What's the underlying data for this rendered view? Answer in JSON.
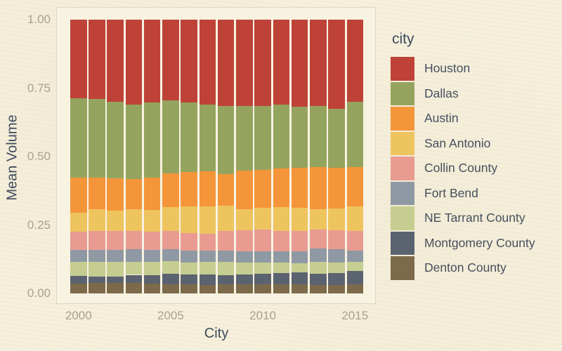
{
  "figure": {
    "background_color": "#f5efdb",
    "panel_background": "#f8f2e1",
    "panel_border_color": "#ded6bf",
    "tick_label_color": "#a9a190",
    "axis_title_color": "#3e4a5c",
    "legend_label_color": "#46505e"
  },
  "axes": {
    "x_title": "City",
    "y_title": "Mean Volume",
    "y_ticks": [
      {
        "label": "1.00",
        "value": 1.0
      },
      {
        "label": "0.75",
        "value": 0.75
      },
      {
        "label": "0.50",
        "value": 0.5
      },
      {
        "label": "0.25",
        "value": 0.25
      },
      {
        "label": "0.00",
        "value": 0.0
      }
    ],
    "x_ticks": [
      {
        "label": "2000",
        "index": 0
      },
      {
        "label": "2005",
        "index": 5
      },
      {
        "label": "2010",
        "index": 10
      },
      {
        "label": "2015",
        "index": 15
      }
    ]
  },
  "legend": {
    "title": "city",
    "position": "right"
  },
  "chart_data": {
    "type": "bar",
    "stacked": true,
    "normalized": true,
    "orientation": "vertical",
    "title": "",
    "xlabel": "City",
    "ylabel": "Mean Volume",
    "ylim": [
      0,
      1
    ],
    "grid": false,
    "legend_position": "right",
    "stack_note": "series listed in legend order top-to-bottom; bars stack with first series on top",
    "categories": [
      "2000",
      "2001",
      "2002",
      "2003",
      "2004",
      "2005",
      "2006",
      "2007",
      "2008",
      "2009",
      "2010",
      "2011",
      "2012",
      "2013",
      "2014",
      "2015"
    ],
    "series": [
      {
        "name": "Houston",
        "color": "#bf4238",
        "values": [
          0.287,
          0.29,
          0.3,
          0.309,
          0.302,
          0.294,
          0.302,
          0.31,
          0.315,
          0.315,
          0.315,
          0.31,
          0.317,
          0.315,
          0.326,
          0.3
        ]
      },
      {
        "name": "Dallas",
        "color": "#94a45e",
        "values": [
          0.291,
          0.288,
          0.28,
          0.273,
          0.274,
          0.267,
          0.254,
          0.245,
          0.248,
          0.237,
          0.233,
          0.234,
          0.224,
          0.224,
          0.215,
          0.238
        ]
      },
      {
        "name": "Austin",
        "color": "#f4953a",
        "values": [
          0.126,
          0.115,
          0.117,
          0.109,
          0.12,
          0.124,
          0.126,
          0.127,
          0.117,
          0.139,
          0.139,
          0.141,
          0.146,
          0.154,
          0.148,
          0.144
        ]
      },
      {
        "name": "San Antonio",
        "color": "#eec45f",
        "values": [
          0.07,
          0.08,
          0.076,
          0.082,
          0.078,
          0.088,
          0.097,
          0.099,
          0.093,
          0.079,
          0.08,
          0.088,
          0.086,
          0.073,
          0.081,
          0.091
        ]
      },
      {
        "name": "Collin County",
        "color": "#e99b92",
        "values": [
          0.067,
          0.068,
          0.068,
          0.065,
          0.067,
          0.065,
          0.065,
          0.062,
          0.07,
          0.077,
          0.08,
          0.074,
          0.074,
          0.07,
          0.068,
          0.07
        ]
      },
      {
        "name": "Fort Bend",
        "color": "#8f99a4",
        "values": [
          0.043,
          0.044,
          0.044,
          0.046,
          0.044,
          0.043,
          0.043,
          0.042,
          0.042,
          0.04,
          0.04,
          0.041,
          0.043,
          0.049,
          0.049,
          0.041
        ]
      },
      {
        "name": "NE Tarrant County",
        "color": "#c5cd90",
        "values": [
          0.052,
          0.054,
          0.054,
          0.048,
          0.048,
          0.046,
          0.043,
          0.045,
          0.048,
          0.043,
          0.04,
          0.037,
          0.033,
          0.042,
          0.038,
          0.035
        ]
      },
      {
        "name": "Montgomery County",
        "color": "#5b6370",
        "values": [
          0.028,
          0.024,
          0.024,
          0.03,
          0.031,
          0.039,
          0.037,
          0.04,
          0.033,
          0.036,
          0.04,
          0.042,
          0.044,
          0.043,
          0.045,
          0.047
        ]
      },
      {
        "name": "Denton County",
        "color": "#7c6a4b",
        "values": [
          0.036,
          0.038,
          0.038,
          0.038,
          0.036,
          0.034,
          0.033,
          0.03,
          0.034,
          0.034,
          0.033,
          0.033,
          0.033,
          0.03,
          0.03,
          0.034
        ]
      }
    ]
  }
}
